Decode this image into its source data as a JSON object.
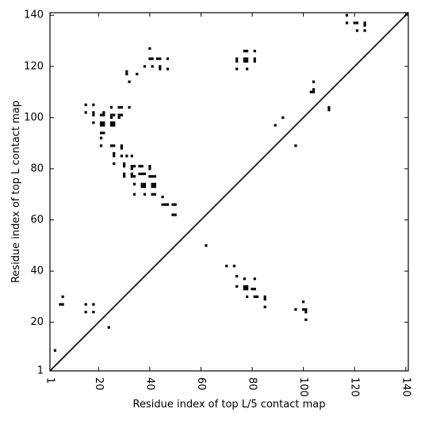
{
  "chart_data": {
    "type": "scatter",
    "title": "",
    "xlabel": "Residue index of top L/5 contact map",
    "ylabel": "Residue index of top L contact map",
    "xlim": [
      1,
      141
    ],
    "ylim": [
      1,
      141
    ],
    "xticks": [
      1,
      20,
      40,
      60,
      80,
      100,
      120,
      140
    ],
    "yticks": [
      1,
      20,
      40,
      60,
      80,
      100,
      120,
      140
    ],
    "xtick_rotation_deg": -90,
    "grid": false,
    "legend": "none",
    "diagonal": {
      "from": [
        1,
        1
      ],
      "to": [
        141,
        141
      ]
    },
    "series": [
      {
        "marker": "square",
        "color": "#000000",
        "points": [
          [
            3,
            9
          ],
          [
            5,
            27
          ],
          [
            6,
            27
          ],
          [
            6,
            30
          ],
          [
            15,
            24
          ],
          [
            15,
            27
          ],
          [
            18,
            24
          ],
          [
            18,
            27
          ],
          [
            24,
            18
          ],
          [
            15,
            102
          ],
          [
            15,
            105
          ],
          [
            18,
            98
          ],
          [
            18,
            101
          ],
          [
            18,
            102
          ],
          [
            18,
            105
          ],
          [
            21,
            89
          ],
          [
            21,
            92
          ],
          [
            21,
            94
          ],
          [
            22,
            94
          ],
          [
            21,
            97
          ],
          [
            21,
            98
          ],
          [
            22,
            97
          ],
          [
            22,
            98
          ],
          [
            21,
            101
          ],
          [
            22,
            101
          ],
          [
            22,
            102
          ],
          [
            25,
            97
          ],
          [
            25,
            98
          ],
          [
            26,
            97
          ],
          [
            26,
            98
          ],
          [
            25,
            101
          ],
          [
            26,
            101
          ],
          [
            25,
            100
          ],
          [
            25,
            104
          ],
          [
            28,
            104
          ],
          [
            29,
            104
          ],
          [
            32,
            104
          ],
          [
            28,
            100
          ],
          [
            28,
            101
          ],
          [
            29,
            101
          ],
          [
            25,
            89
          ],
          [
            26,
            89
          ],
          [
            26,
            85
          ],
          [
            26,
            86
          ],
          [
            26,
            82
          ],
          [
            29,
            89
          ],
          [
            29,
            88
          ],
          [
            29,
            85
          ],
          [
            30,
            82
          ],
          [
            30,
            81
          ],
          [
            31,
            85
          ],
          [
            30,
            78
          ],
          [
            30,
            77
          ],
          [
            33,
            85
          ],
          [
            33,
            81
          ],
          [
            33,
            80
          ],
          [
            33,
            78
          ],
          [
            33,
            77
          ],
          [
            34,
            81
          ],
          [
            34,
            77
          ],
          [
            34,
            74
          ],
          [
            34,
            70
          ],
          [
            36,
            81
          ],
          [
            37,
            81
          ],
          [
            36,
            78
          ],
          [
            37,
            78
          ],
          [
            38,
            78
          ],
          [
            37,
            74
          ],
          [
            38,
            74
          ],
          [
            37,
            73
          ],
          [
            38,
            73
          ],
          [
            38,
            70
          ],
          [
            40,
            81
          ],
          [
            40,
            80
          ],
          [
            40,
            77
          ],
          [
            41,
            77
          ],
          [
            42,
            77
          ],
          [
            41,
            74
          ],
          [
            42,
            74
          ],
          [
            41,
            73
          ],
          [
            42,
            73
          ],
          [
            41,
            70
          ],
          [
            42,
            70
          ],
          [
            45,
            69
          ],
          [
            45,
            66
          ],
          [
            46,
            66
          ],
          [
            47,
            66
          ],
          [
            49,
            66
          ],
          [
            50,
            66
          ],
          [
            49,
            62
          ],
          [
            50,
            62
          ],
          [
            31,
            117
          ],
          [
            31,
            118
          ],
          [
            32,
            114
          ],
          [
            35,
            117
          ],
          [
            38,
            120
          ],
          [
            40,
            127
          ],
          [
            40,
            123
          ],
          [
            41,
            123
          ],
          [
            41,
            120
          ],
          [
            43,
            123
          ],
          [
            44,
            123
          ],
          [
            44,
            120
          ],
          [
            44,
            119
          ],
          [
            47,
            123
          ],
          [
            47,
            119
          ],
          [
            62,
            50
          ],
          [
            70,
            42
          ],
          [
            73,
            42
          ],
          [
            74,
            38
          ],
          [
            74,
            34
          ],
          [
            77,
            37
          ],
          [
            77,
            34
          ],
          [
            78,
            34
          ],
          [
            78,
            33
          ],
          [
            77,
            33
          ],
          [
            78,
            30
          ],
          [
            81,
            37
          ],
          [
            80,
            33
          ],
          [
            81,
            33
          ],
          [
            81,
            30
          ],
          [
            82,
            30
          ],
          [
            85,
            30
          ],
          [
            85,
            29
          ],
          [
            85,
            26
          ],
          [
            74,
            123
          ],
          [
            74,
            122
          ],
          [
            74,
            119
          ],
          [
            77,
            126
          ],
          [
            78,
            126
          ],
          [
            77,
            123
          ],
          [
            78,
            123
          ],
          [
            77,
            122
          ],
          [
            78,
            122
          ],
          [
            78,
            119
          ],
          [
            81,
            126
          ],
          [
            81,
            123
          ],
          [
            81,
            122
          ],
          [
            89,
            97
          ],
          [
            92,
            100
          ],
          [
            97,
            89
          ],
          [
            97,
            25
          ],
          [
            100,
            28
          ],
          [
            100,
            25
          ],
          [
            101,
            25
          ],
          [
            101,
            24
          ],
          [
            101,
            21
          ],
          [
            104,
            114
          ],
          [
            104,
            111
          ],
          [
            103,
            110
          ],
          [
            104,
            110
          ],
          [
            110,
            104
          ],
          [
            110,
            103
          ],
          [
            117,
            140
          ],
          [
            117,
            137
          ],
          [
            120,
            137
          ],
          [
            121,
            137
          ],
          [
            121,
            134
          ],
          [
            124,
            137
          ],
          [
            124,
            136
          ],
          [
            124,
            134
          ]
        ]
      }
    ]
  }
}
